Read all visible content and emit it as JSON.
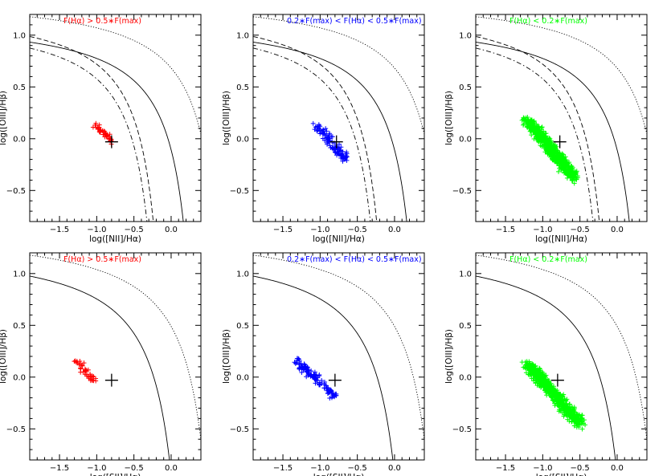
{
  "chart_data": [
    {
      "type": "scatter",
      "title": "F(Hα) > 0.5∗F(max)",
      "title_color": "#ff0000",
      "xlabel": "log([NII]/Hα)",
      "ylabel": "log([OIII]/Hβ)",
      "xlim": [
        -1.9,
        0.4
      ],
      "ylim": [
        -0.8,
        1.2
      ],
      "xticks": [
        -1.5,
        -1.0,
        -0.5,
        0.0
      ],
      "xticklabels": [
        "−1.5",
        "−1.0",
        "−0.5",
        "0.0"
      ],
      "yticks": [
        -0.5,
        0.0,
        0.5,
        1.0
      ],
      "yticklabels": [
        "−0.5",
        "0.0",
        "0.5",
        "1.0"
      ],
      "point_color": "#ff0000",
      "centroid": [
        -0.8,
        -0.03
      ],
      "cluster": {
        "n": 40,
        "x_range": [
          -1.08,
          -0.74
        ],
        "y_top": 0.2,
        "y_bottom": -0.09,
        "jitter": 0.04,
        "trend": [
          -1.02,
          0.13,
          -0.8,
          -0.02
        ]
      },
      "reference_lines": [
        "kewley-nii-solid",
        "kauffmann-nii-dashed",
        "stasinska-nii-dashdot",
        "shifted-nii-dotted"
      ]
    },
    {
      "type": "scatter",
      "title": "0.2∗F(max) < F(Hα) < 0.5∗F(max)",
      "title_color": "#0000ff",
      "xlabel": "log([NII]/Hα)",
      "ylabel": "log([OIII]/Hβ)",
      "xlim": [
        -1.9,
        0.4
      ],
      "ylim": [
        -0.8,
        1.2
      ],
      "xticks": [
        -1.5,
        -1.0,
        -0.5,
        0.0
      ],
      "xticklabels": [
        "−1.5",
        "−1.0",
        "−0.5",
        "0.0"
      ],
      "yticks": [
        -0.5,
        0.0,
        0.5,
        1.0
      ],
      "yticklabels": [
        "−0.5",
        "0.0",
        "0.5",
        "1.0"
      ],
      "point_color": "#0000ff",
      "centroid": [
        -0.78,
        -0.03
      ],
      "cluster": {
        "n": 110,
        "x_range": [
          -1.2,
          -0.58
        ],
        "y_top": 0.22,
        "y_bottom": -0.3,
        "jitter": 0.06,
        "trend": [
          -1.05,
          0.12,
          -0.65,
          -0.2
        ]
      },
      "reference_lines": [
        "kewley-nii-solid",
        "kauffmann-nii-dashed",
        "stasinska-nii-dashdot",
        "shifted-nii-dotted"
      ]
    },
    {
      "type": "scatter",
      "title": "F(Hα) < 0.2∗F(max)",
      "title_color": "#00ff00",
      "xlabel": "log([NII]/Hα)",
      "ylabel": "log([OIII]/Hβ)",
      "xlim": [
        -1.9,
        0.4
      ],
      "ylim": [
        -0.8,
        1.2
      ],
      "xticks": [
        -1.5,
        -1.0,
        -0.5,
        0.0
      ],
      "xticklabels": [
        "−1.5",
        "−1.0",
        "−0.5",
        "0.0"
      ],
      "yticks": [
        -0.5,
        0.0,
        0.5,
        1.0
      ],
      "yticklabels": [
        "−0.5",
        "0.0",
        "0.5",
        "1.0"
      ],
      "point_color": "#00ff00",
      "centroid": [
        -0.77,
        -0.03
      ],
      "cluster": {
        "n": 700,
        "x_range": [
          -1.3,
          -0.48
        ],
        "y_top": 0.26,
        "y_bottom": -0.52,
        "jitter": 0.08,
        "trend": [
          -1.2,
          0.18,
          -0.58,
          -0.38
        ]
      },
      "reference_lines": [
        "kewley-nii-solid",
        "kauffmann-nii-dashed",
        "stasinska-nii-dashdot",
        "shifted-nii-dotted"
      ]
    },
    {
      "type": "scatter",
      "title": "F(Hα) > 0.5∗F(max)",
      "title_color": "#ff0000",
      "xlabel": "log([SII]/Hα)",
      "ylabel": "log([OIII]/Hβ)",
      "xlim": [
        -1.9,
        0.4
      ],
      "ylim": [
        -0.8,
        1.2
      ],
      "xticks": [
        -1.5,
        -1.0,
        -0.5,
        0.0
      ],
      "xticklabels": [
        "−1.5",
        "−1.0",
        "−0.5",
        "0.0"
      ],
      "yticks": [
        -0.5,
        0.0,
        0.5,
        1.0
      ],
      "yticklabels": [
        "−0.5",
        "0.0",
        "0.5",
        "1.0"
      ],
      "point_color": "#ff0000",
      "centroid": [
        -0.8,
        -0.03
      ],
      "cluster": {
        "n": 40,
        "x_range": [
          -1.35,
          -0.95
        ],
        "y_top": 0.22,
        "y_bottom": -0.15,
        "jitter": 0.05,
        "trend": [
          -1.3,
          0.16,
          -1.0,
          -0.06
        ]
      },
      "reference_lines": [
        "kewley-sii-solid",
        "shifted-sii-dotted"
      ]
    },
    {
      "type": "scatter",
      "title": "0.2∗F(max) < F(Hα) < 0.5∗F(max)",
      "title_color": "#0000ff",
      "xlabel": "log([SII]/Hα)",
      "ylabel": "log([OIII]/Hβ)",
      "xlim": [
        -1.9,
        0.4
      ],
      "ylim": [
        -0.8,
        1.2
      ],
      "xticks": [
        -1.5,
        -1.0,
        -0.5,
        0.0
      ],
      "xticklabels": [
        "−1.5",
        "−1.0",
        "−0.5",
        "0.0"
      ],
      "yticks": [
        -0.5,
        0.0,
        0.5,
        1.0
      ],
      "yticklabels": [
        "−0.5",
        "0.0",
        "0.5",
        "1.0"
      ],
      "point_color": "#0000ff",
      "centroid": [
        -0.8,
        -0.03
      ],
      "cluster": {
        "n": 110,
        "x_range": [
          -1.42,
          -0.74
        ],
        "y_top": 0.26,
        "y_bottom": -0.35,
        "jitter": 0.06,
        "trend": [
          -1.3,
          0.15,
          -0.8,
          -0.18
        ]
      },
      "reference_lines": [
        "kewley-sii-solid",
        "shifted-sii-dotted"
      ]
    },
    {
      "type": "scatter",
      "title": "F(Hα) < 0.2∗F(max)",
      "title_color": "#00ff00",
      "xlabel": "log([SII]/Hα)",
      "ylabel": "log([OIII]/Hβ)",
      "xlim": [
        -1.9,
        0.4
      ],
      "ylim": [
        -0.8,
        1.2
      ],
      "xticks": [
        -1.5,
        -1.0,
        -0.5,
        0.0
      ],
      "xticklabels": [
        "−1.5",
        "−1.0",
        "−0.5",
        "0.0"
      ],
      "yticks": [
        -0.5,
        0.0,
        0.5,
        1.0
      ],
      "yticklabels": [
        "−0.5",
        "0.0",
        "0.5",
        "1.0"
      ],
      "point_color": "#00ff00",
      "centroid": [
        -0.8,
        -0.03
      ],
      "cluster": {
        "n": 700,
        "x_range": [
          -1.3,
          -0.4
        ],
        "y_top": 0.22,
        "y_bottom": -0.7,
        "jitter": 0.08,
        "trend": [
          -1.2,
          0.12,
          -0.5,
          -0.45
        ]
      },
      "reference_lines": [
        "kewley-sii-solid",
        "shifted-sii-dotted"
      ]
    }
  ]
}
